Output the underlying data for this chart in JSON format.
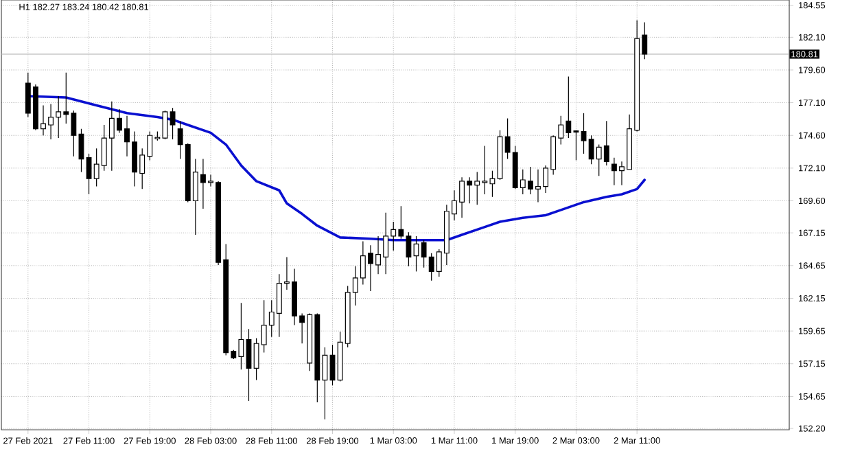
{
  "chart_data": {
    "type": "candlestick",
    "title": "H1 182.27 183.24 180.42 180.81",
    "x": [
      "2021-02-27T03:00",
      "2021-02-27T04:00",
      "2021-02-27T05:00",
      "2021-02-27T06:00",
      "2021-02-27T07:00",
      "2021-02-27T08:00",
      "2021-02-27T09:00",
      "2021-02-27T10:00",
      "2021-02-27T11:00",
      "2021-02-27T12:00",
      "2021-02-27T13:00",
      "2021-02-27T14:00",
      "2021-02-27T15:00",
      "2021-02-27T16:00",
      "2021-02-27T17:00",
      "2021-02-27T18:00",
      "2021-02-27T19:00",
      "2021-02-27T20:00",
      "2021-02-27T21:00",
      "2021-02-27T22:00",
      "2021-02-27T23:00",
      "2021-02-28T00:00",
      "2021-02-28T01:00",
      "2021-02-28T02:00",
      "2021-02-28T03:00",
      "2021-02-28T04:00",
      "2021-02-28T05:00",
      "2021-02-28T06:00",
      "2021-02-28T07:00",
      "2021-02-28T08:00",
      "2021-02-28T09:00",
      "2021-02-28T10:00",
      "2021-02-28T11:00",
      "2021-02-28T12:00",
      "2021-02-28T13:00",
      "2021-02-28T14:00",
      "2021-02-28T15:00",
      "2021-02-28T16:00",
      "2021-02-28T17:00",
      "2021-02-28T18:00",
      "2021-02-28T19:00",
      "2021-02-28T20:00",
      "2021-02-28T21:00",
      "2021-02-28T22:00",
      "2021-02-28T23:00",
      "2021-03-01T00:00",
      "2021-03-01T01:00",
      "2021-03-01T02:00",
      "2021-03-01T03:00",
      "2021-03-01T04:00",
      "2021-03-01T05:00",
      "2021-03-01T06:00",
      "2021-03-01T07:00",
      "2021-03-01T08:00",
      "2021-03-01T09:00",
      "2021-03-01T10:00",
      "2021-03-01T11:00",
      "2021-03-01T12:00",
      "2021-03-01T13:00",
      "2021-03-01T14:00",
      "2021-03-01T15:00",
      "2021-03-01T16:00",
      "2021-03-01T17:00",
      "2021-03-01T18:00",
      "2021-03-01T19:00",
      "2021-03-01T20:00",
      "2021-03-01T21:00",
      "2021-03-01T22:00",
      "2021-03-01T23:00",
      "2021-03-02T00:00",
      "2021-03-02T01:00",
      "2021-03-02T02:00",
      "2021-03-02T03:00",
      "2021-03-02T04:00",
      "2021-03-02T05:00",
      "2021-03-02T06:00",
      "2021-03-02T07:00",
      "2021-03-02T08:00",
      "2021-03-02T09:00",
      "2021-03-02T10:00",
      "2021-03-02T11:00",
      "2021-03-02T12:00"
    ],
    "ohlc": [
      [
        178.6,
        179.4,
        176.0,
        176.3
      ],
      [
        178.3,
        178.5,
        175.0,
        175.1
      ],
      [
        175.1,
        176.9,
        174.6,
        175.5
      ],
      [
        175.4,
        177.0,
        174.3,
        176.0
      ],
      [
        176.0,
        177.6,
        174.4,
        176.4
      ],
      [
        176.4,
        179.4,
        175.5,
        176.2
      ],
      [
        176.3,
        176.5,
        173.0,
        174.6
      ],
      [
        174.7,
        175.1,
        171.8,
        172.8
      ],
      [
        172.9,
        173.2,
        170.1,
        171.3
      ],
      [
        171.3,
        173.6,
        170.7,
        172.4
      ],
      [
        172.3,
        175.4,
        171.9,
        174.4
      ],
      [
        174.4,
        177.2,
        171.9,
        175.9
      ],
      [
        175.9,
        176.6,
        174.8,
        175.0
      ],
      [
        175.1,
        176.1,
        173.0,
        174.1
      ],
      [
        174.1,
        174.9,
        170.7,
        171.8
      ],
      [
        171.7,
        173.6,
        170.5,
        173.1
      ],
      [
        173.0,
        174.9,
        172.7,
        174.6
      ],
      [
        174.35,
        174.9,
        174.2,
        174.45
      ],
      [
        174.4,
        176.5,
        174.3,
        176.4
      ],
      [
        176.4,
        176.7,
        174.3,
        175.4
      ],
      [
        175.1,
        175.7,
        172.8,
        173.9
      ],
      [
        173.9,
        174.0,
        169.5,
        169.6
      ],
      [
        169.6,
        172.8,
        167.0,
        171.8
      ],
      [
        171.6,
        172.8,
        169.0,
        171.0
      ],
      [
        171.0,
        171.6,
        170.7,
        171.1
      ],
      [
        171.0,
        171.1,
        164.7,
        164.9
      ],
      [
        165.1,
        166.3,
        157.8,
        158.0
      ],
      [
        158.1,
        158.2,
        157.5,
        157.6
      ],
      [
        157.7,
        161.8,
        156.7,
        159.0
      ],
      [
        159.0,
        159.8,
        154.3,
        156.8
      ],
      [
        156.8,
        159.1,
        155.9,
        158.7
      ],
      [
        158.6,
        162.0,
        158.0,
        160.1
      ],
      [
        160.1,
        162.0,
        159.2,
        161.1
      ],
      [
        161.0,
        164.0,
        159.2,
        163.3
      ],
      [
        163.3,
        165.3,
        162.8,
        163.4
      ],
      [
        163.4,
        164.4,
        160.1,
        160.8
      ],
      [
        160.8,
        161.0,
        158.7,
        160.3
      ],
      [
        157.2,
        161.0,
        156.6,
        160.9
      ],
      [
        160.9,
        161.0,
        154.2,
        155.9
      ],
      [
        155.9,
        158.4,
        152.9,
        157.8
      ],
      [
        157.8,
        158.6,
        155.5,
        155.9
      ],
      [
        155.9,
        159.6,
        155.8,
        158.8
      ],
      [
        158.7,
        163.1,
        158.4,
        162.6
      ],
      [
        162.6,
        164.6,
        161.6,
        163.7
      ],
      [
        163.7,
        166.5,
        163.2,
        165.4
      ],
      [
        165.6,
        166.2,
        162.7,
        164.8
      ],
      [
        164.7,
        166.9,
        164.0,
        165.5
      ],
      [
        165.3,
        168.7,
        164.0,
        166.9
      ],
      [
        166.9,
        168.0,
        165.8,
        167.4
      ],
      [
        167.4,
        169.2,
        166.7,
        166.9
      ],
      [
        166.9,
        167.2,
        164.6,
        165.3
      ],
      [
        165.4,
        166.9,
        164.2,
        166.3
      ],
      [
        166.4,
        166.6,
        164.5,
        165.3
      ],
      [
        165.3,
        165.6,
        163.5,
        164.2
      ],
      [
        164.2,
        165.9,
        163.8,
        165.7
      ],
      [
        165.6,
        169.3,
        164.7,
        168.8
      ],
      [
        168.6,
        170.4,
        168.1,
        169.6
      ],
      [
        169.5,
        171.4,
        168.3,
        171.1
      ],
      [
        171.1,
        171.4,
        169.4,
        170.8
      ],
      [
        170.8,
        171.8,
        169.3,
        171.1
      ],
      [
        171.0,
        173.8,
        170.1,
        171.1
      ],
      [
        170.9,
        171.9,
        169.9,
        171.3
      ],
      [
        171.3,
        175.0,
        171.2,
        174.5
      ],
      [
        174.5,
        175.9,
        172.8,
        173.3
      ],
      [
        173.3,
        173.8,
        170.5,
        170.6
      ],
      [
        170.6,
        172.0,
        170.1,
        171.2
      ],
      [
        171.1,
        172.2,
        170.1,
        170.5
      ],
      [
        170.5,
        172.0,
        169.5,
        170.7
      ],
      [
        170.7,
        172.3,
        170.2,
        172.1
      ],
      [
        172.0,
        174.6,
        171.6,
        174.5
      ],
      [
        174.4,
        176.1,
        173.9,
        175.4
      ],
      [
        175.7,
        179.1,
        174.4,
        174.8
      ],
      [
        174.95,
        175.0,
        172.7,
        174.85
      ],
      [
        174.9,
        176.3,
        173.2,
        174.2
      ],
      [
        174.3,
        174.6,
        172.4,
        172.8
      ],
      [
        172.8,
        173.9,
        171.5,
        173.7
      ],
      [
        173.8,
        175.7,
        172.3,
        172.6
      ],
      [
        172.4,
        172.9,
        170.8,
        171.9
      ],
      [
        171.9,
        172.6,
        170.8,
        172.2
      ],
      [
        172.0,
        176.2,
        172.0,
        175.1
      ],
      [
        175.0,
        183.4,
        174.9,
        182.0
      ],
      [
        182.27,
        183.24,
        180.42,
        180.81
      ]
    ],
    "series": [
      {
        "type": "line",
        "color": "#0a10d0",
        "x": [
          "2021-02-27T03:00",
          "2021-02-27T08:00",
          "2021-02-27T12:00",
          "2021-02-27T16:00",
          "2021-02-27T20:00",
          "2021-02-27T22:00",
          "2021-02-28T00:00",
          "2021-02-28T03:00",
          "2021-02-28T05:00",
          "2021-02-28T07:00",
          "2021-02-28T09:00",
          "2021-02-28T12:00",
          "2021-02-28T13:00",
          "2021-02-28T15:00",
          "2021-02-28T17:00",
          "2021-02-28T19:00",
          "2021-02-28T20:00",
          "2021-03-01T00:00",
          "2021-03-01T03:00",
          "2021-03-01T07:00",
          "2021-03-01T10:00",
          "2021-03-01T12:00",
          "2021-03-01T15:00",
          "2021-03-01T17:00",
          "2021-03-01T20:00",
          "2021-03-01T23:00",
          "2021-03-02T01:00",
          "2021-03-02T04:00",
          "2021-03-02T07:00",
          "2021-03-02T09:00",
          "2021-03-02T11:00",
          "2021-03-02T12:00"
        ],
        "values": [
          177.6,
          177.5,
          176.9,
          176.3,
          176.0,
          175.8,
          175.4,
          174.8,
          173.9,
          172.3,
          171.1,
          170.4,
          169.4,
          168.6,
          167.7,
          167.1,
          166.8,
          166.7,
          166.6,
          166.6,
          166.6,
          167.0,
          167.6,
          168.0,
          168.3,
          168.5,
          168.9,
          169.5,
          169.9,
          170.1,
          170.5,
          171.2
        ]
      }
    ],
    "xlim": [
      "2021-02-26T23:30",
      "2021-03-03T07:00"
    ],
    "ylim": [
      152.1,
      184.95
    ],
    "xticks": [
      {
        "value": "2021-02-27T03:00",
        "label": "27 Feb 2021"
      },
      {
        "value": "2021-02-27T11:00",
        "label": "27 Feb 11:00"
      },
      {
        "value": "2021-02-27T19:00",
        "label": "27 Feb 19:00"
      },
      {
        "value": "2021-02-28T03:00",
        "label": "28 Feb 03:00"
      },
      {
        "value": "2021-02-28T11:00",
        "label": "28 Feb 11:00"
      },
      {
        "value": "2021-02-28T19:00",
        "label": "28 Feb 19:00"
      },
      {
        "value": "2021-03-01T03:00",
        "label": "1 Mar 03:00"
      },
      {
        "value": "2021-03-01T11:00",
        "label": "1 Mar 11:00"
      },
      {
        "value": "2021-03-01T19:00",
        "label": "1 Mar 19:00"
      },
      {
        "value": "2021-03-02T03:00",
        "label": "2 Mar 03:00"
      },
      {
        "value": "2021-03-02T11:00",
        "label": "2 Mar 11:00"
      }
    ],
    "yticks": [
      184.55,
      {
        "value": 182.1,
        "label": "182.10"
      },
      {
        "value": 179.6,
        "label": "179.60"
      },
      {
        "value": 177.1,
        "label": "177.10"
      },
      {
        "value": 174.6,
        "label": "174.60"
      },
      {
        "value": 172.1,
        "label": "172.10"
      },
      {
        "value": 169.6,
        "label": "169.60"
      },
      167.15,
      164.65,
      162.15,
      159.65,
      157.15,
      154.65,
      {
        "value": 152.2,
        "label": "152.20"
      }
    ],
    "ref_lines": [
      {
        "axis": "y",
        "value": 180.81,
        "label": "180.81",
        "color": "#b4b4b4"
      }
    ],
    "grid": true
  }
}
